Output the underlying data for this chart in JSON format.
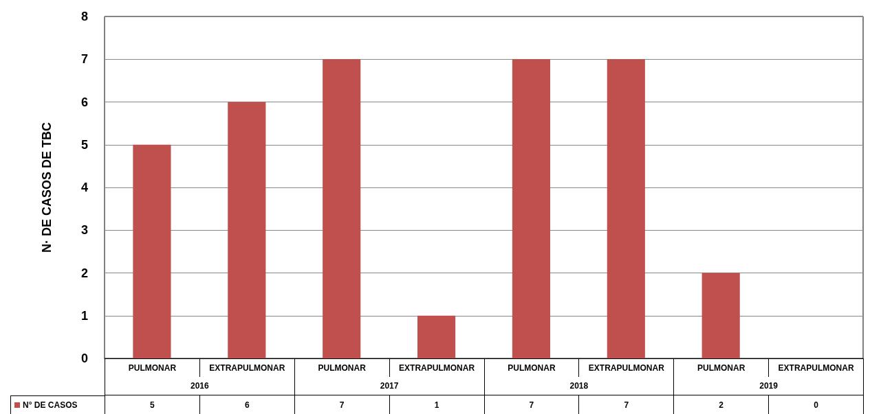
{
  "chart_data": {
    "type": "bar",
    "ylabel": "N· DE CASOS DE TBC",
    "categories": [
      "PULMONAR",
      "EXTRAPULMONAR",
      "PULMONAR",
      "EXTRAPULMONAR",
      "PULMONAR",
      "EXTRAPULMONAR",
      "PULMONAR",
      "EXTRAPULMONAR"
    ],
    "annotations": [
      "2016",
      "2017",
      "2018",
      "2019"
    ],
    "series": [
      {
        "name": "N° DE CASOS",
        "color": "#c0504d",
        "values": [
          5,
          6,
          7,
          1,
          7,
          7,
          2,
          0
        ]
      }
    ],
    "ylim": [
      0,
      8
    ],
    "yticks": [
      0,
      1,
      2,
      3,
      4,
      5,
      6,
      7,
      8
    ],
    "grid": "y",
    "legend": "bottom",
    "data_labels": true
  }
}
